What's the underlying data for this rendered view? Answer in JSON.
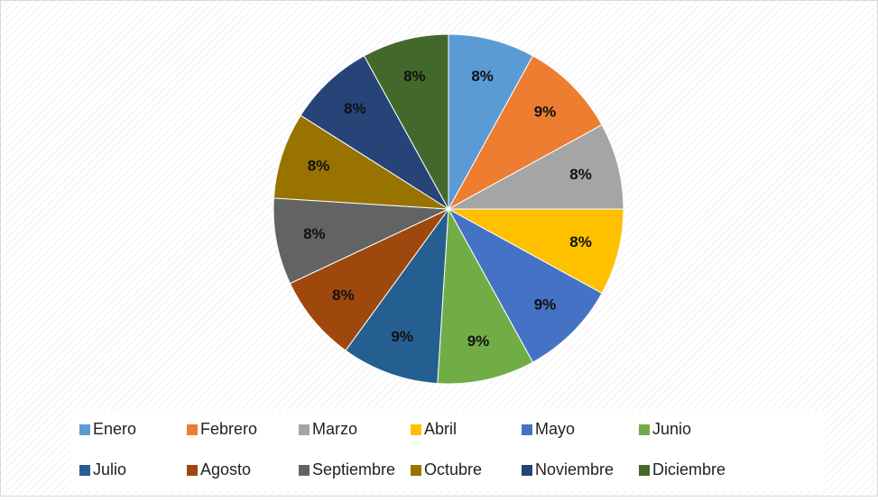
{
  "chart_data": {
    "type": "pie",
    "categories": [
      "Enero",
      "Febrero",
      "Marzo",
      "Abril",
      "Mayo",
      "Junio",
      "Julio",
      "Agosto",
      "Septiembre",
      "Octubre",
      "Noviembre",
      "Diciembre"
    ],
    "values": [
      8,
      9,
      8,
      8,
      9,
      9,
      9,
      8,
      8,
      8,
      8,
      8
    ],
    "value_labels": [
      "8%",
      "9%",
      "8%",
      "8%",
      "9%",
      "9%",
      "9%",
      "8%",
      "8%",
      "8%",
      "8%",
      "8%"
    ],
    "colors": [
      "#5b9bd5",
      "#ed7d31",
      "#a5a5a5",
      "#ffc000",
      "#4472c4",
      "#70ad47",
      "#255e91",
      "#9e480e",
      "#636363",
      "#997300",
      "#264478",
      "#43682b"
    ],
    "legend": "bottom"
  }
}
